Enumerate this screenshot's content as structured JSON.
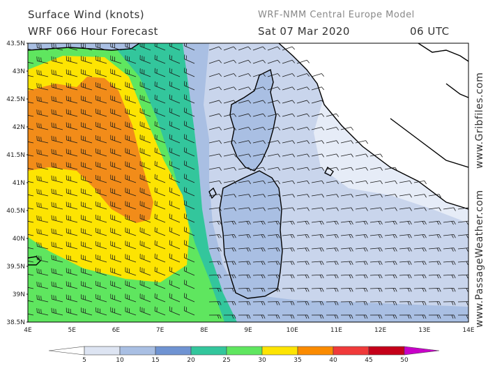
{
  "header": {
    "title_line1": "Surface Wind (knots)",
    "title_line2": "WRF 066 Hour Forecast",
    "model": "WRF-NMM Central Europe Model",
    "date": "Sat 07 Mar 2020",
    "time": "06 UTC"
  },
  "side_labels": {
    "gribfiles": "www.Gribfiles.com",
    "passageweather": "www.PassageWeather.com"
  },
  "axes": {
    "lat_labels": [
      "43.5N",
      "43N",
      "42.5N",
      "42N",
      "41.5N",
      "41N",
      "40.5N",
      "40N",
      "39.5N",
      "39N",
      "38.5N"
    ],
    "lon_labels": [
      "4E",
      "5E",
      "6E",
      "7E",
      "8E",
      "9E",
      "10E",
      "11E",
      "12E",
      "13E",
      "14E"
    ]
  },
  "legend": {
    "labels": [
      "5",
      "10",
      "15",
      "20",
      "25",
      "30",
      "35",
      "40",
      "45",
      "50"
    ],
    "colors": [
      "#ffffff",
      "#dde4f2",
      "#a9bfe3",
      "#6f93d2",
      "#33c69c",
      "#5fe65f",
      "#fde402",
      "#fb8b00",
      "#f03a3a",
      "#c50019",
      "#c800c8"
    ]
  },
  "map": {
    "colors": {
      "sea_calm": "#c9d5ec",
      "very_light": "#e6ecf7",
      "light_blue": "#a9bfe3",
      "mid_blue": "#6f93d2",
      "teal": "#33c69c",
      "green": "#5fe65f",
      "yellow": "#fde402",
      "orange": "#f28c19",
      "land_white": "#ffffff"
    }
  }
}
